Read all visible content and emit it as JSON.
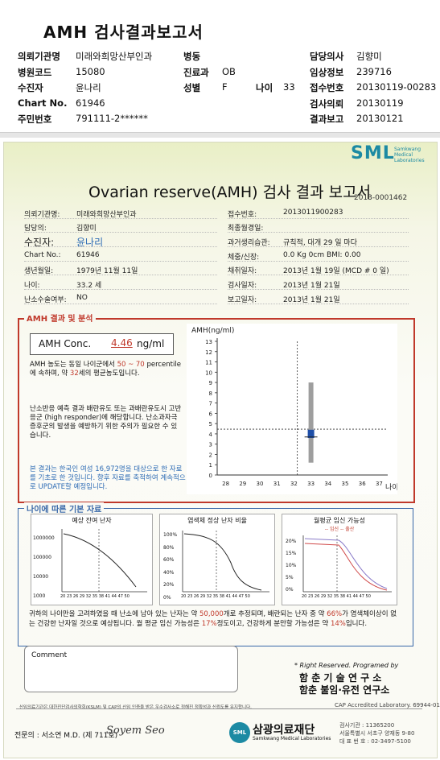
{
  "outer": {
    "title": "AMH 검사결과보고서",
    "rows": [
      {
        "l1": "의뢰기관명",
        "v1": "미래와희망산부인과",
        "l2": "병동",
        "v2": "",
        "l3": "",
        "v3": "",
        "l4": "담당의사",
        "v4": "김향미"
      },
      {
        "l1": "병원코드",
        "v1": "15080",
        "l2": "진료과",
        "v2": "OB",
        "l3": "",
        "v3": "",
        "l4": "임상정보",
        "v4": "239716"
      },
      {
        "l1": "수진자",
        "v1": "윤나리",
        "l2": "성별",
        "v2": "F",
        "l3": "나이",
        "v3": "33",
        "l4": "접수번호",
        "v4": "20130119-00283"
      },
      {
        "l1": "Chart No.",
        "v1": "61946",
        "l2": "",
        "v2": "",
        "l3": "",
        "v3": "",
        "l4": "검사의뢰",
        "v4": "20130119"
      },
      {
        "l1": "주민번호",
        "v1": "791111-2******",
        "l2": "",
        "v2": "",
        "l3": "",
        "v3": "",
        "l4": "결과보고",
        "v4": "20130121"
      }
    ]
  },
  "report": {
    "logo": "SML",
    "logo_sub": "Samkwang Medical Laboratories",
    "title": "Ovarian reserve(AMH) 검사 결과 보고서",
    "doc_no": "2013-0001462",
    "left_info": [
      {
        "label": "의뢰기관명:",
        "value": "미래와희망산부인과"
      },
      {
        "label": "담당의:",
        "value": "김향미"
      },
      {
        "label": "수진자:",
        "value": "윤나리"
      },
      {
        "label": "Chart No.:",
        "value": "61946"
      },
      {
        "label": "생년월일:",
        "value": "1979년 11월 11일"
      },
      {
        "label": "나이:",
        "value": "33.2 세"
      },
      {
        "label": "난소수술여부:",
        "value": "NO"
      }
    ],
    "right_info": [
      {
        "label": "접수번호:",
        "value": "2013011900283"
      },
      {
        "label": "최종월경일:",
        "value": ""
      },
      {
        "label": "과거생리습관:",
        "value": "규칙적, 대개  29 일 마다"
      },
      {
        "label": "체중/신장:",
        "value": "0.0 Kg        0cm    BMI:    0.00"
      },
      {
        "label": "채취일자:",
        "value": "2013년 1월 19일   (MCD # 0 일)"
      },
      {
        "label": "검사일자:",
        "value": "2013년 1월 21일"
      },
      {
        "label": "보고일자:",
        "value": "2013년 1월 21일"
      }
    ]
  },
  "amh": {
    "section_title": "AMH 결과 및 분석",
    "conc_label": "AMH Conc.",
    "conc_value": "4.46",
    "conc_unit": "ng/ml",
    "para1_a": "AMH 농도는 동일 나이군에서",
    "para1_range": "50 ~ 70",
    "para1_b": "percentile에 속하며, 약",
    "para1_age": "32",
    "para1_c": "세의 평균농도입니다.",
    "para2": "난소반응 예측 결과 배란유도 또는 과배란유도시 고반응군 (high responder)에 해당합니다. 난소과자극 증후군의 발생을 예방하기 위한 주의가 필요한 수 있습니다.",
    "para3": "본 결과는 한국인 여성 16,972명을 대상으로 한 자료를 기초로 한 것입니다. 향후 자료를 축적하여 계속적으로 UPDATE할 예정입니다."
  },
  "chart_data": {
    "type": "box",
    "ylabel": "AMH(ng/ml)",
    "xlabel": "나이",
    "x_ticks": [
      28,
      29,
      30,
      31,
      32,
      33,
      34,
      35,
      36,
      37
    ],
    "y_ticks": [
      0,
      1,
      2,
      3,
      4,
      5,
      6,
      7,
      8,
      9,
      10,
      11,
      12,
      13
    ],
    "xlim": [
      27.5,
      37.5
    ],
    "ylim": [
      0,
      13
    ],
    "grid": false,
    "box": {
      "x": 33,
      "whisker_low": 1.2,
      "q1": 3.6,
      "median": 3.7,
      "q3": 4.4,
      "whisker_high": 9.0
    },
    "patient": {
      "age": 33.2,
      "value": 4.46
    },
    "ref_lines": {
      "x": 32.2,
      "y": 4.46
    }
  },
  "age_section": {
    "title": "나이에 따른 기본 자료",
    "chart1_title": "예상 잔여 난자",
    "chart1_yticks": [
      "1000000",
      "100000",
      "10000",
      "1000"
    ],
    "chart2_title": "염색체 정상 난자 비율",
    "chart2_yticks": [
      "100%",
      "80%",
      "60%",
      "40%",
      "20%",
      "0%"
    ],
    "chart3_title": "월평균 임신 가능성",
    "chart3_legend": "-- 임신 -- 출산",
    "chart3_yticks": [
      "20%",
      "15%",
      "10%",
      "5%",
      "0%"
    ],
    "x_axis": "20 23 26 29 32 35 38 41 44 47 50",
    "summary_a": "귀하의 나이만을 고려하였을 때 난소에 남아 있는 난자는 약",
    "summary_eggs": "50,000",
    "summary_b": "개로 추정되며, 배란되는 난자 중 약",
    "summary_pct1": "66%",
    "summary_c": "가 염색체이상이 없는 건강한 난자일 것으로 예상됩니다. 월 평균 임신 가능성은",
    "summary_pct2": "17%",
    "summary_d": "정도이고, 건강하게 분만할 가능성은 약",
    "summary_pct3": "14%",
    "summary_e": "입니다."
  },
  "footer": {
    "comment_label": "Comment",
    "rights": "* Right Reserved. Programed by",
    "institute1": "함 춘 기 술 연 구 소",
    "institute2": "함춘 불임·유전 연구소",
    "accreditation": "신임의료기관은 대한진단검사의학회(KSLM) 및 CAP의 신임 인증을 받은 우수검사소로 정해진 정확성과 신뢰도를 유지합니다.",
    "cap": "CAP Accredited Laboratory. 69944-01",
    "doctor_label": "전문의 : 서소연 M.D. (제 711호)",
    "signature": "SoyemSeo",
    "foundation": "삼광의료재단",
    "foundation_sub": "Samkwang Medical Laboratories",
    "phone1": "검사기관 : 11365200",
    "addr": "서울특별시 서초구 양재동 9-80",
    "phone2": "대 표 번 호 : 02-3497-5100"
  }
}
